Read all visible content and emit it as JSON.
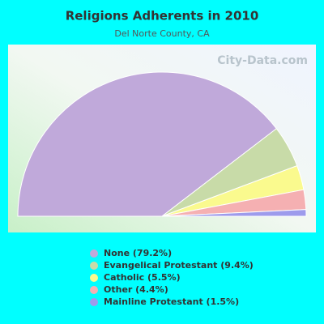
{
  "chart_data": {
    "type": "half-pie",
    "title": "Religions Adherents in 2010",
    "subtitle": "Del Norte County, CA",
    "watermark": "City-Data.com",
    "categories": [
      "None (79.2%)",
      "Evangelical Protestant (9.4%)",
      "Catholic (5.5%)",
      "Other (4.4%)",
      "Mainline Protestant (1.5%)"
    ],
    "values": [
      79.2,
      9.4,
      5.5,
      4.4,
      1.5
    ],
    "colors": [
      "#c0a9da",
      "#c8dba8",
      "#fafa8e",
      "#f5b0b2",
      "#9d9bec"
    ]
  }
}
